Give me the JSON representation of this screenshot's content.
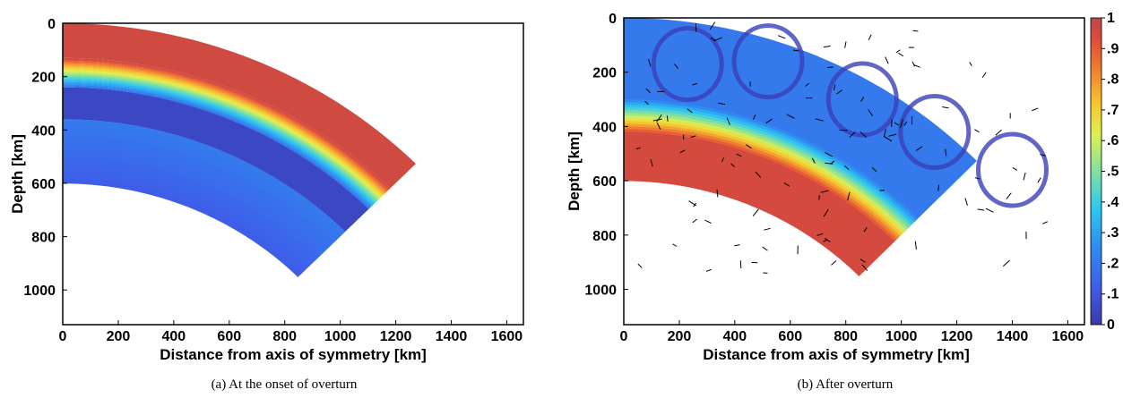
{
  "chart_data": [
    {
      "type": "heatmap",
      "panel": "a",
      "caption": "(a) At the onset of overturn",
      "xlabel": "Distance from axis of symmetry [km]",
      "ylabel": "Depth [km]",
      "xlim": [
        0,
        1660
      ],
      "ylim": [
        1130,
        0
      ],
      "x_ticks": [
        "0",
        "200",
        "400",
        "600",
        "800",
        "1000",
        "1200",
        "1400",
        "1600"
      ],
      "y_ticks": [
        "0",
        "200",
        "400",
        "600",
        "800",
        "1000"
      ],
      "field": "composition",
      "layers": [
        {
          "depth_range_km": [
            0,
            130
          ],
          "value": 0.95
        },
        {
          "depth_range_km": [
            130,
            240
          ],
          "value": "1.0 to 0.3 gradient"
        },
        {
          "depth_range_km": [
            240,
            360
          ],
          "value": 0.05
        },
        {
          "depth_range_km": [
            360,
            600
          ],
          "value": 0.15
        }
      ]
    },
    {
      "type": "heatmap",
      "panel": "b",
      "caption": "(b) After overturn",
      "xlabel": "Distance from axis of symmetry [km]",
      "ylabel": "Depth [km]",
      "xlim": [
        0,
        1660
      ],
      "ylim": [
        1130,
        0
      ],
      "x_ticks": [
        "0",
        "200",
        "400",
        "600",
        "800",
        "1000",
        "1200",
        "1400",
        "1600"
      ],
      "y_ticks": [
        "0",
        "200",
        "400",
        "600",
        "800",
        "1000"
      ],
      "field": "composition with velocity arrows",
      "colorbar": {
        "min": 0,
        "max": 1,
        "ticks": [
          "1",
          ".9",
          ".8",
          ".7",
          ".6",
          ".5",
          ".4",
          ".3",
          ".2",
          ".1",
          "0"
        ]
      }
    }
  ],
  "colors": {
    "dark_red": "#b84a4a",
    "blue": "#3f5ce8",
    "dark_blue": "#3a40b8",
    "light_blue": "#4a8cf0",
    "cyan": "#2ec0f0"
  }
}
